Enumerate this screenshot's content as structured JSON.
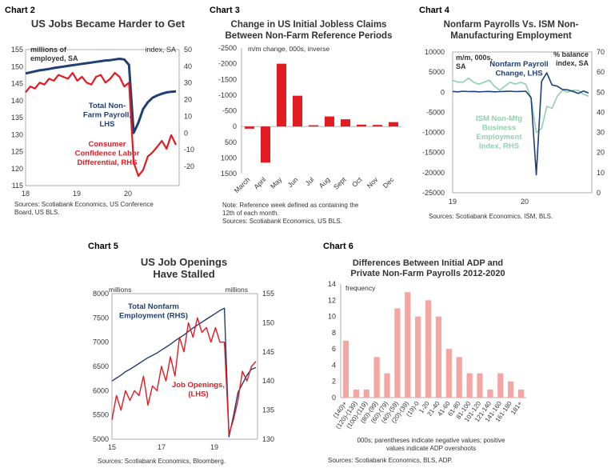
{
  "chart_data": [
    {
      "id": "c2",
      "chart_label": "Chart 2",
      "type": "line",
      "title": "US Jobs Became Harder to Get",
      "left_unit": [
        "millions of",
        "employed, SA"
      ],
      "right_unit": "index, SA",
      "left_ticks": [
        "155",
        "150",
        "145",
        "140",
        "135",
        "130",
        "125",
        "120",
        "115"
      ],
      "right_ticks": [
        "50",
        "40",
        "30",
        "20",
        "10",
        "0",
        "-10",
        "-20"
      ],
      "x_ticks": [
        "18",
        "19",
        "20"
      ],
      "ylim_left": [
        115,
        155
      ],
      "ylim_right": [
        -20,
        50
      ],
      "series": [
        {
          "name": "Total Non-Farm Payroll, LHS",
          "label_lines": [
            "Total Non-",
            "Farm Payroll,",
            "LHS"
          ],
          "axis": "left",
          "color": "#1f3f75",
          "values": [
            148,
            148.3,
            148.6,
            148.9,
            149.1,
            149.3,
            149.6,
            149.8,
            150.0,
            150.2,
            150.4,
            150.6,
            150.8,
            151.0,
            151.2,
            151.4,
            151.6,
            151.8,
            151.9,
            152.1,
            152.3,
            152.1,
            150.5,
            130.5,
            133.5,
            137.5,
            139.5,
            140.8,
            141.5,
            142.0,
            142.4,
            142.6,
            142.7
          ]
        },
        {
          "name": "Consumer Confidence Labor Differential, RHS",
          "label_lines": [
            "Consumer",
            "Confidence Labor",
            "Differential, RHS"
          ],
          "axis": "right",
          "color": "#e31b23",
          "values": [
            28,
            31,
            30,
            33,
            32,
            35,
            34,
            37,
            36,
            35,
            38,
            34,
            36,
            33,
            32,
            36,
            37,
            33,
            35,
            38,
            36,
            31,
            33,
            -8,
            -15,
            -12,
            -5,
            -3,
            0,
            3,
            -1,
            6,
            1
          ]
        }
      ],
      "source": [
        "Sources: Scotiabank Economics, US Conference",
        "Board, US BLS."
      ]
    },
    {
      "id": "c3",
      "chart_label": "Chart 3",
      "type": "bar",
      "title": [
        "Change in US Initial Jobless Claims",
        "Between Non-Farm Reference Periods"
      ],
      "unit": "m/m change, 000s, inverse",
      "categories": [
        "March",
        "April",
        "May",
        "Jun",
        "Jul",
        "Aug",
        "Sept",
        "Oct",
        "Nov",
        "Dec"
      ],
      "values": [
        70,
        1150,
        -2000,
        -980,
        -40,
        -320,
        -230,
        -60,
        -50,
        -140
      ],
      "y_ticks": [
        "-2500",
        "-2000",
        "-1500",
        "-1000",
        "-500",
        "0",
        "500",
        "1000",
        "1500"
      ],
      "ylim": [
        1500,
        -2500
      ],
      "color": "#e31b23",
      "note": [
        "Note: Reference week defined as containing the",
        "12th of each month.",
        "Sources: Scotiabank Economics, US BLS."
      ]
    },
    {
      "id": "c4",
      "chart_label": "Chart 4",
      "type": "line",
      "title": [
        "Nonfarm Payrolls Vs. ISM Non-",
        "Manufacturing Employment"
      ],
      "left_unit": [
        "m/m, 000s,",
        "SA"
      ],
      "right_unit": [
        "% balance",
        "index, SA"
      ],
      "left_ticks": [
        "10000",
        "5000",
        "0",
        "-5000",
        "-10000",
        "-15000",
        "-20000",
        "-25000"
      ],
      "right_ticks": [
        "70",
        "60",
        "50",
        "40",
        "30",
        "20",
        "10",
        "0"
      ],
      "x_ticks": [
        "19",
        "20"
      ],
      "ylim_left": [
        -25000,
        10000
      ],
      "ylim_right": [
        0,
        70
      ],
      "series": [
        {
          "name": "Nonfarm Payroll Change, LHS",
          "label_lines": [
            "Nonfarm Payroll",
            "Change, LHS"
          ],
          "axis": "left",
          "color": "#1f3f75",
          "values": [
            200,
            100,
            250,
            150,
            200,
            100,
            150,
            200,
            100,
            150,
            200,
            250,
            150,
            200,
            250,
            -1400,
            -20500,
            2700,
            4800,
            1800,
            1500,
            700,
            600,
            200,
            -300,
            300,
            -200
          ]
        },
        {
          "name": "ISM Non-Mfg Business Employment Index, RHS",
          "label_lines": [
            "ISM Non-Mfg",
            "Business",
            "Employment",
            "Index, RHS"
          ],
          "axis": "right",
          "color": "#8fd0ad",
          "values": [
            56,
            55,
            55,
            57,
            55,
            54,
            55,
            56,
            53,
            51,
            53,
            55,
            54,
            55,
            54,
            47,
            30,
            32,
            43,
            42,
            48,
            51,
            50,
            51,
            51,
            49,
            48
          ]
        }
      ],
      "source": "Sources: Scotiabank Economics, ISM, BLS."
    },
    {
      "id": "c5",
      "chart_label": "Chart 5",
      "type": "line",
      "title": [
        "US Job Openings",
        "Have Stalled"
      ],
      "left_unit": "millions",
      "right_unit": "millions",
      "left_ticks": [
        "8000",
        "7500",
        "7000",
        "6500",
        "6000",
        "5500",
        "5000"
      ],
      "right_ticks": [
        "155",
        "150",
        "145",
        "140",
        "135",
        "130"
      ],
      "x_ticks": [
        "15",
        "17",
        "19"
      ],
      "ylim_left": [
        5000,
        8000
      ],
      "ylim_right": [
        130,
        155
      ],
      "series": [
        {
          "name": "Total Nonfarm Employment (RHS)",
          "label_lines": [
            "Total Nonfarm",
            "Employment (RHS)"
          ],
          "axis": "right",
          "color": "#1f3f75",
          "values": [
            140,
            140.5,
            141,
            141.6,
            142,
            142.5,
            143,
            143.5,
            144,
            144.4,
            144.8,
            145.3,
            145.8,
            146.3,
            146.9,
            147.4,
            147.9,
            148.5,
            149.1,
            149.6,
            150.1,
            150.6,
            151.1,
            151.6,
            152.1,
            152.5,
            130.4,
            134,
            138,
            139.5,
            141,
            142,
            142.3
          ]
        },
        {
          "name": "Job Openings, (LHS)",
          "label_lines": [
            "Job Openings,",
            "(LHS)"
          ],
          "axis": "left",
          "color": "#e31b23",
          "values": [
            5400,
            5900,
            5600,
            6000,
            5800,
            6000,
            5900,
            6300,
            5700,
            6100,
            6000,
            6500,
            6200,
            6700,
            6300,
            7100,
            6800,
            7400,
            7100,
            7500,
            7200,
            7300,
            7000,
            7300,
            7000,
            7000,
            5100,
            5400,
            5800,
            6400,
            6200,
            6500,
            6600
          ]
        }
      ],
      "source": "Sources: Scotiabank Economics, Bloomberg."
    },
    {
      "id": "c6",
      "chart_label": "Chart 6",
      "type": "bar",
      "title": [
        "Differences Between Initial ADP and",
        "Private Non-Farm Payrolls 2012-2020"
      ],
      "unit": "frequency",
      "categories": [
        "(140)+",
        "(120)-(139)",
        "(100)-(119)",
        "(80)-(99)",
        "(60)-(79)",
        "(40)-(59)",
        "(20)-(39)",
        "(19)-0",
        "1-20",
        "21-40",
        "41-60",
        "61-80",
        "81-100",
        "101-120",
        "121-140",
        "141-160",
        "161-180",
        "181+"
      ],
      "values": [
        7,
        1,
        1,
        5,
        3,
        11,
        13,
        10,
        12,
        10,
        6,
        5,
        3,
        3,
        1,
        3,
        2,
        1
      ],
      "y_ticks": [
        "14",
        "12",
        "10",
        "8",
        "6",
        "4",
        "2",
        "0"
      ],
      "ylim": [
        0,
        14
      ],
      "color": "#f4a6a2",
      "note": [
        "000s; parentheses indicate negative values; positive",
        "values indicate ADP overshoots"
      ],
      "source": "Sources: Scotiabank Economics, BLS, ADP."
    }
  ]
}
